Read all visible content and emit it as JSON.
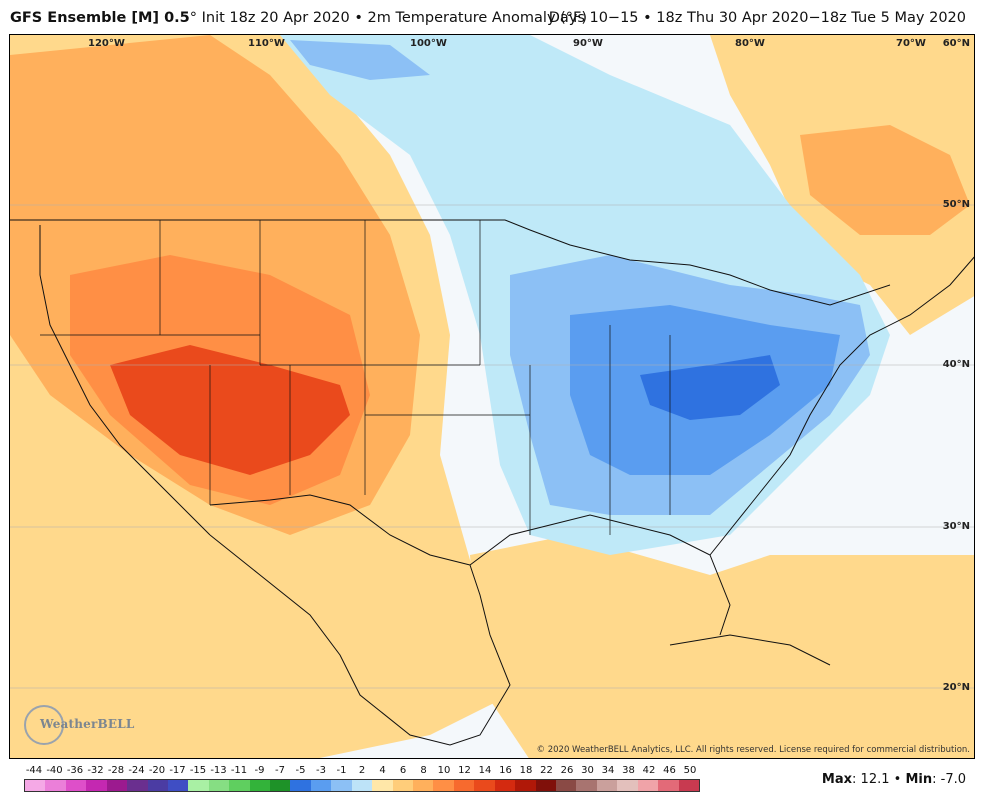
{
  "header": {
    "model": "GFS Ensemble [M] 0.5",
    "deg": "°",
    "init": "Init 18z 20 Apr 2020",
    "sep": "•",
    "field": "2m Temperature Anomaly (°F)",
    "valid": "Days 10−15 • 18z Thu 30 Apr 2020−18z Tue 5 May 2020"
  },
  "map": {
    "lon_labels": [
      "120°W",
      "110°W",
      "100°W",
      "90°W",
      "80°W",
      "70°W"
    ],
    "lat_labels": [
      "60°N",
      "50°N",
      "40°N",
      "30°N",
      "20°N"
    ],
    "copyright": "© 2020 WeatherBELL Analytics, LLC. All rights reserved. License required for commercial distribution.",
    "logo_text": "WeatherBELL",
    "logo_icon": "weatherbell-logo-icon"
  },
  "colorbar": {
    "labels": [
      "-44",
      "-40",
      "-36",
      "-32",
      "-28",
      "-24",
      "-20",
      "-17",
      "-15",
      "-13",
      "-11",
      "-9",
      "-7",
      "-5",
      "-3",
      "-1",
      "2",
      "4",
      "6",
      "8",
      "10",
      "12",
      "14",
      "16",
      "18",
      "22",
      "26",
      "30",
      "34",
      "38",
      "42",
      "46",
      "50"
    ],
    "colors": [
      "#f5a9e6",
      "#eb7fd9",
      "#de4fc9",
      "#c428b1",
      "#9c1a8f",
      "#6a2f8f",
      "#4b3ca3",
      "#3f4ec4",
      "#a9f0a4",
      "#86de83",
      "#5fcf5f",
      "#33b33a",
      "#1e9228",
      "#2f72e0",
      "#5a9df0",
      "#8cc0f5",
      "#bde3f8",
      "#ffe7a8",
      "#ffcd7a",
      "#ffb05c",
      "#ff8f45",
      "#f76a2e",
      "#ea4a1c",
      "#d42a10",
      "#b01808",
      "#80100a",
      "#8a4a45",
      "#a87470",
      "#caa09c",
      "#e3c0bc",
      "#f0a3a8",
      "#e36a78",
      "#c83a50"
    ]
  },
  "stats": {
    "max_label": "Max",
    "max_value": ": 12.1",
    "sep": "•",
    "min_label": "Min",
    "min_value": ": -7.0"
  }
}
